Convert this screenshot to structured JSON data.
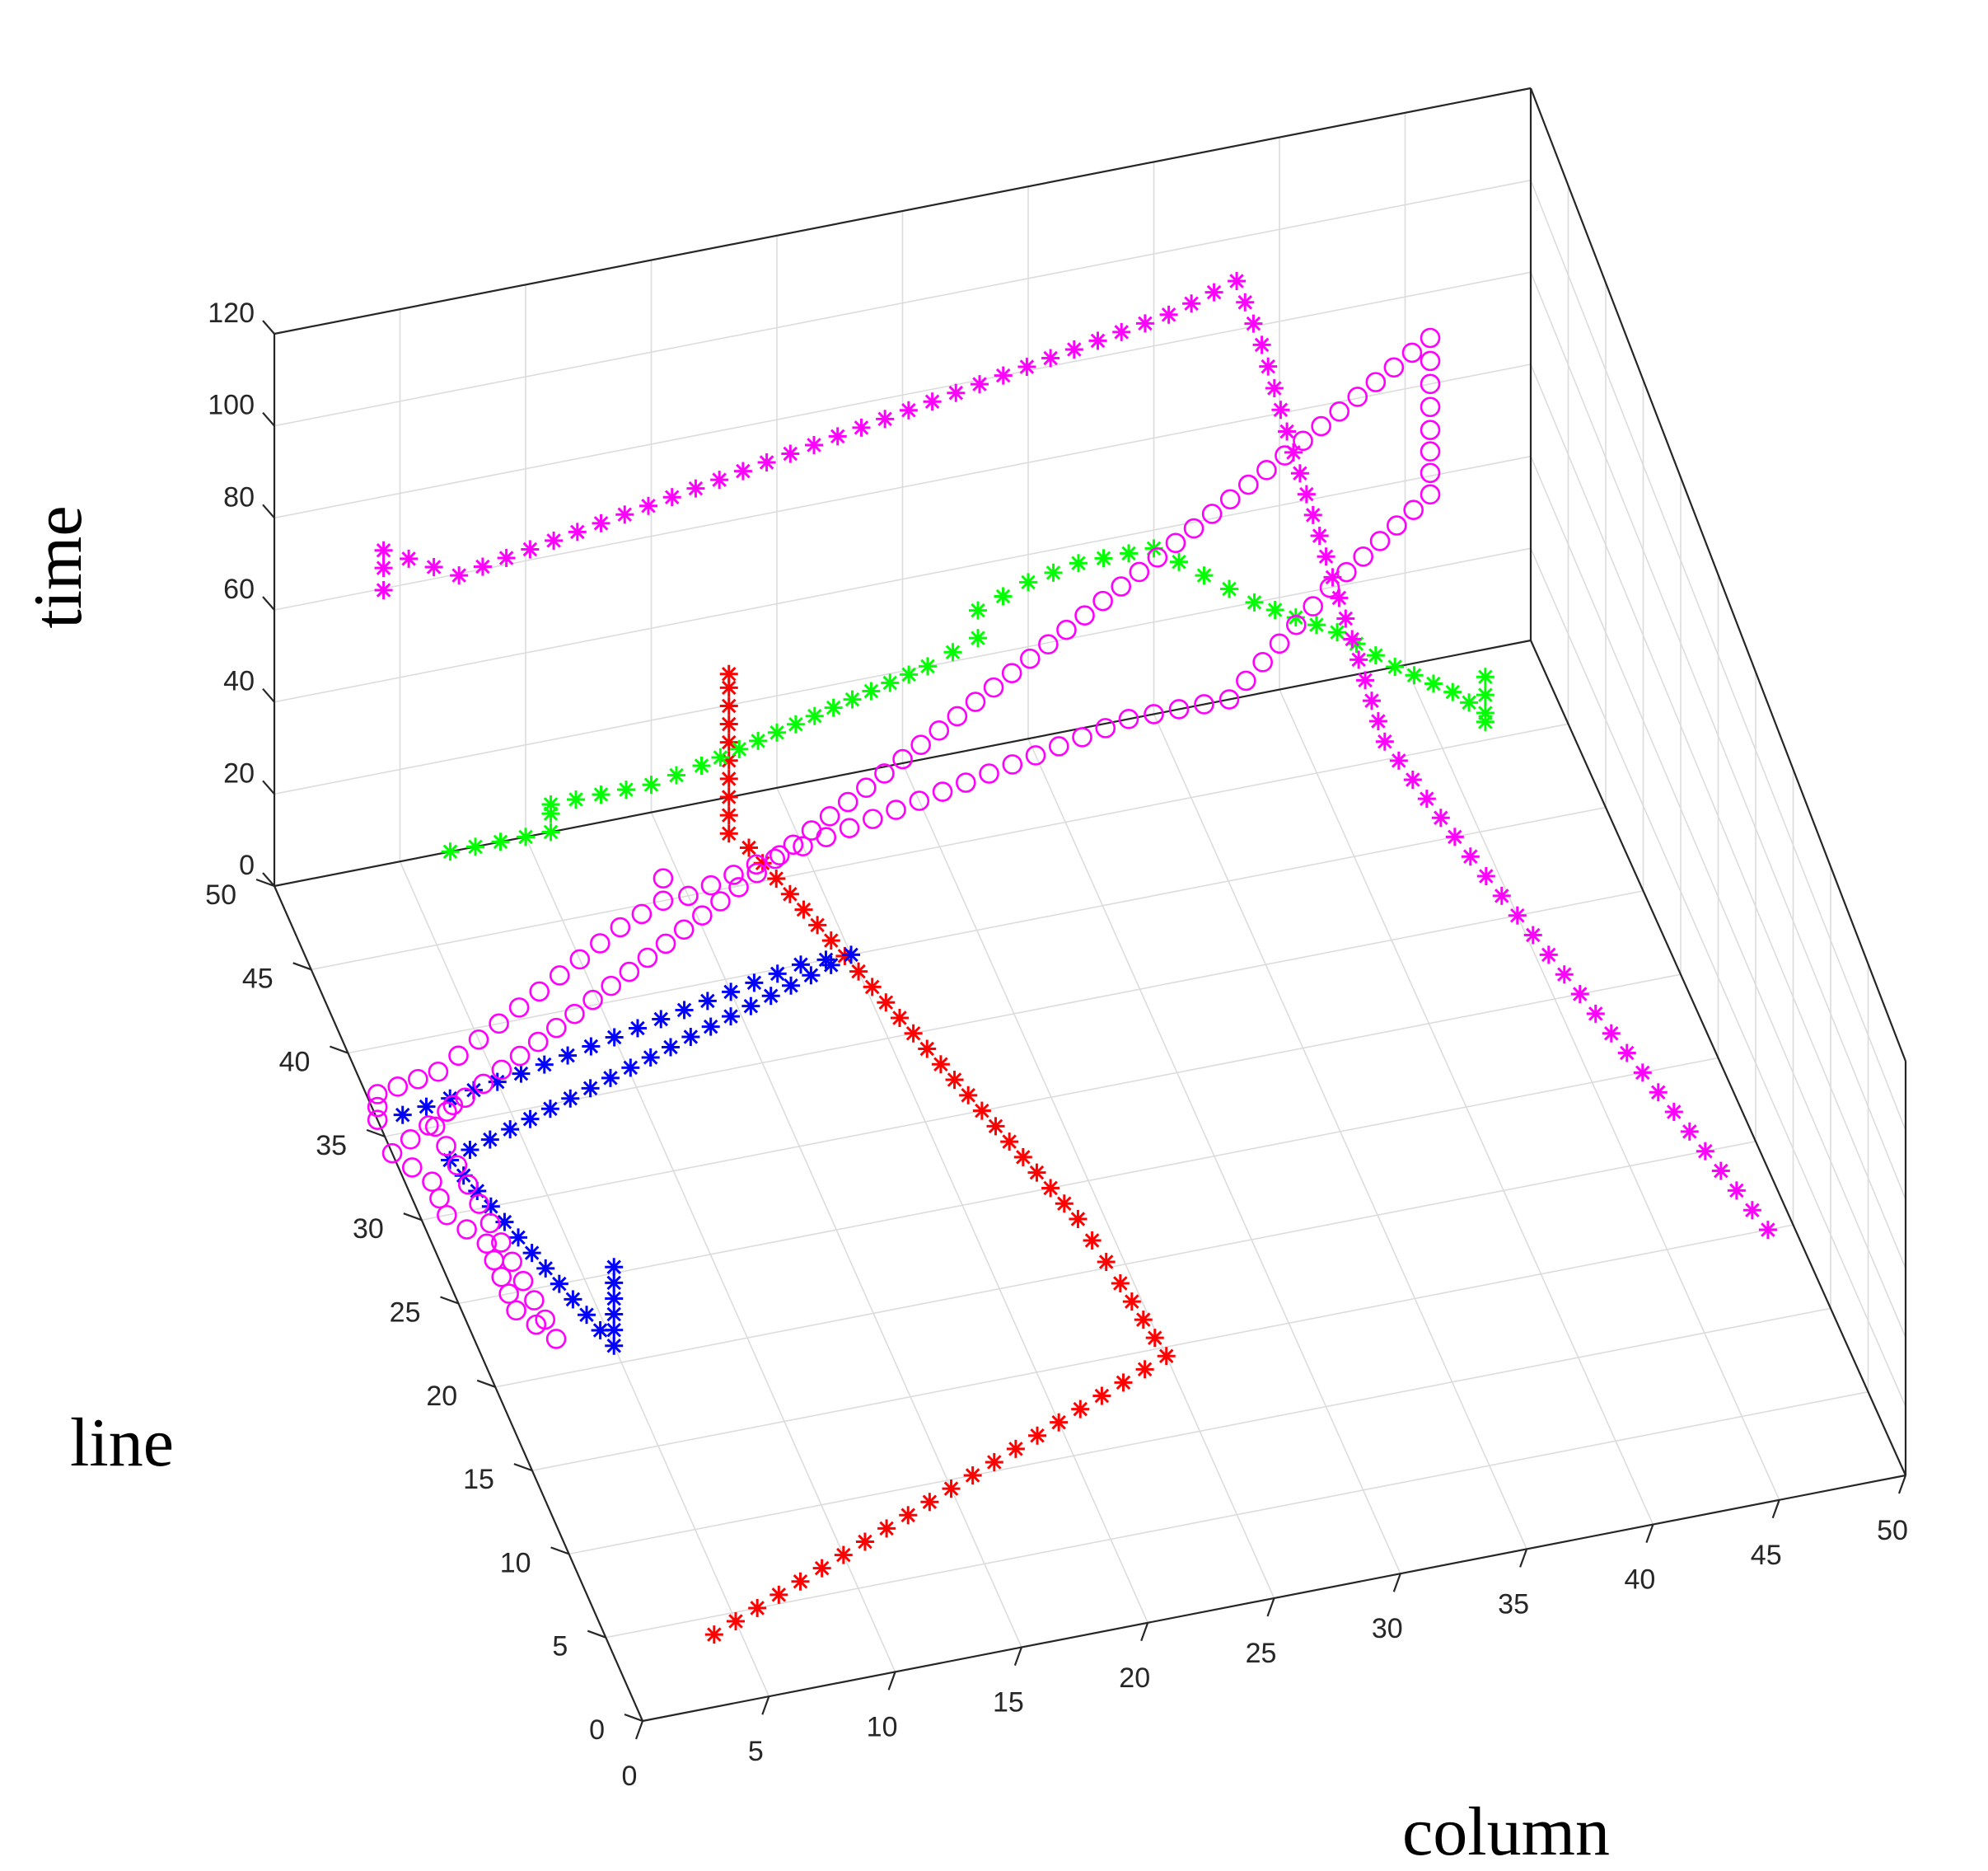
{
  "chart_data": {
    "type": "scatter",
    "projection": "3d",
    "xlabel": "column",
    "ylabel": "line",
    "zlabel": "time",
    "xlim": [
      0,
      50
    ],
    "ylim": [
      0,
      50
    ],
    "zlim": [
      0,
      120
    ],
    "xticks": [
      "0",
      "5",
      "10",
      "15",
      "20",
      "25",
      "30",
      "35",
      "40",
      "45",
      "50"
    ],
    "yticks": [
      "0",
      "5",
      "10",
      "15",
      "20",
      "25",
      "30",
      "35",
      "40",
      "45",
      "50"
    ],
    "zticks": [
      "0",
      "20",
      "40",
      "60",
      "80",
      "100",
      "120"
    ],
    "grid": true,
    "series": [
      {
        "color": "#ff0000",
        "marker": "asterisk",
        "points": [
          [
            4,
            4,
            0
          ],
          [
            8,
            6,
            0
          ],
          [
            12,
            8,
            0
          ],
          [
            16,
            10,
            0
          ],
          [
            20,
            12,
            0
          ],
          [
            24,
            14,
            0
          ],
          [
            25,
            14.5,
            0
          ],
          [
            24.5,
            19,
            0
          ],
          [
            24,
            23,
            0
          ],
          [
            23,
            27,
            0
          ],
          [
            22,
            31,
            0
          ],
          [
            21,
            35,
            0
          ],
          [
            20,
            39,
            0
          ],
          [
            19,
            43,
            0
          ],
          [
            18,
            47,
            0
          ],
          [
            17.5,
            48,
            0
          ],
          [
            17.5,
            48,
            4
          ],
          [
            17.5,
            48,
            8
          ],
          [
            17.5,
            48,
            12
          ],
          [
            17.5,
            48,
            16
          ],
          [
            17.5,
            48,
            20
          ],
          [
            17.5,
            48,
            24
          ],
          [
            17.5,
            48,
            28
          ],
          [
            17.5,
            48,
            32
          ],
          [
            17.5,
            48,
            35
          ]
        ]
      },
      {
        "color": "#0000ff",
        "marker": "asterisk",
        "points": [
          [
            1,
            36,
            0
          ],
          [
            6,
            37,
            0
          ],
          [
            10,
            38,
            0
          ],
          [
            14,
            39,
            0
          ],
          [
            18,
            40,
            0
          ],
          [
            20,
            40,
            0
          ],
          [
            2,
            33,
            0
          ],
          [
            3,
            29,
            0
          ],
          [
            4,
            25,
            0
          ],
          [
            5,
            21,
            0
          ],
          [
            5,
            21,
            4
          ],
          [
            5,
            21,
            8
          ],
          [
            5,
            21,
            12
          ],
          [
            5,
            21,
            16
          ],
          [
            5,
            21,
            20
          ]
        ]
      },
      {
        "color": "#00ff00",
        "marker": "asterisk",
        "points": [
          [
            7,
            50,
            0
          ],
          [
            10,
            50,
            0
          ],
          [
            11,
            50,
            0
          ],
          [
            11,
            50,
            4
          ],
          [
            11,
            50,
            6
          ],
          [
            13,
            50,
            6
          ],
          [
            15,
            50,
            6
          ],
          [
            17,
            50,
            8
          ],
          [
            20,
            50,
            12
          ],
          [
            23,
            50,
            16
          ],
          [
            26,
            50,
            20
          ],
          [
            28,
            50,
            24
          ],
          [
            28,
            50,
            30
          ],
          [
            30,
            50,
            34
          ],
          [
            32,
            50,
            36
          ],
          [
            35,
            50,
            36
          ],
          [
            37,
            50,
            28
          ],
          [
            39,
            50,
            20
          ],
          [
            42,
            49,
            14
          ],
          [
            44,
            48,
            8
          ],
          [
            46,
            47,
            4
          ],
          [
            47,
            46,
            2
          ],
          [
            47,
            46,
            0
          ],
          [
            47,
            46,
            6
          ],
          [
            47,
            46,
            10
          ]
        ]
      },
      {
        "color": "#ff00ff",
        "marker": "asterisk",
        "points": [
          [
            2,
            42,
            95
          ],
          [
            2,
            42,
            100
          ],
          [
            2,
            42,
            104
          ],
          [
            5,
            42,
            95
          ],
          [
            10,
            43,
            95
          ],
          [
            15,
            44,
            95
          ],
          [
            20,
            45,
            95
          ],
          [
            25,
            46,
            95
          ],
          [
            30,
            47,
            95
          ],
          [
            35,
            48,
            95
          ],
          [
            38,
            49,
            95
          ],
          [
            39,
            49,
            80
          ],
          [
            40,
            49,
            60
          ],
          [
            41,
            48,
            40
          ],
          [
            42,
            47,
            20
          ],
          [
            43,
            46,
            0
          ],
          [
            44,
            40,
            0
          ],
          [
            45,
            35,
            0
          ],
          [
            46,
            30,
            0
          ],
          [
            47,
            25,
            0
          ],
          [
            48,
            20,
            0
          ],
          [
            49,
            15,
            0
          ]
        ]
      },
      {
        "color": "#ff00ff",
        "marker": "circle",
        "points": [
          [
            0,
            36,
            0
          ],
          [
            0,
            36,
            3
          ],
          [
            0,
            36,
            6
          ],
          [
            3,
            38,
            0
          ],
          [
            6,
            40,
            0
          ],
          [
            9,
            42,
            0
          ],
          [
            12,
            44,
            0
          ],
          [
            14,
            45,
            0
          ],
          [
            14,
            45,
            5
          ],
          [
            15,
            45,
            0
          ],
          [
            18,
            46,
            0
          ],
          [
            22,
            47,
            0
          ],
          [
            26,
            48,
            0
          ],
          [
            30,
            49,
            0
          ],
          [
            34,
            50,
            0
          ],
          [
            38,
            50,
            0
          ],
          [
            40,
            50,
            10
          ],
          [
            42,
            50,
            20
          ],
          [
            44,
            50,
            28
          ],
          [
            46,
            50,
            36
          ],
          [
            46,
            50,
            50
          ],
          [
            46,
            50,
            60
          ],
          [
            46,
            50,
            70
          ],
          [
            0,
            34,
            0
          ],
          [
            1,
            32,
            0
          ],
          [
            1,
            30,
            0
          ],
          [
            2,
            28,
            0
          ],
          [
            2,
            26,
            0
          ],
          [
            2,
            24,
            0
          ],
          [
            3,
            22,
            0
          ],
          [
            2,
            35,
            0
          ],
          [
            3,
            36,
            0
          ]
        ]
      }
    ]
  }
}
